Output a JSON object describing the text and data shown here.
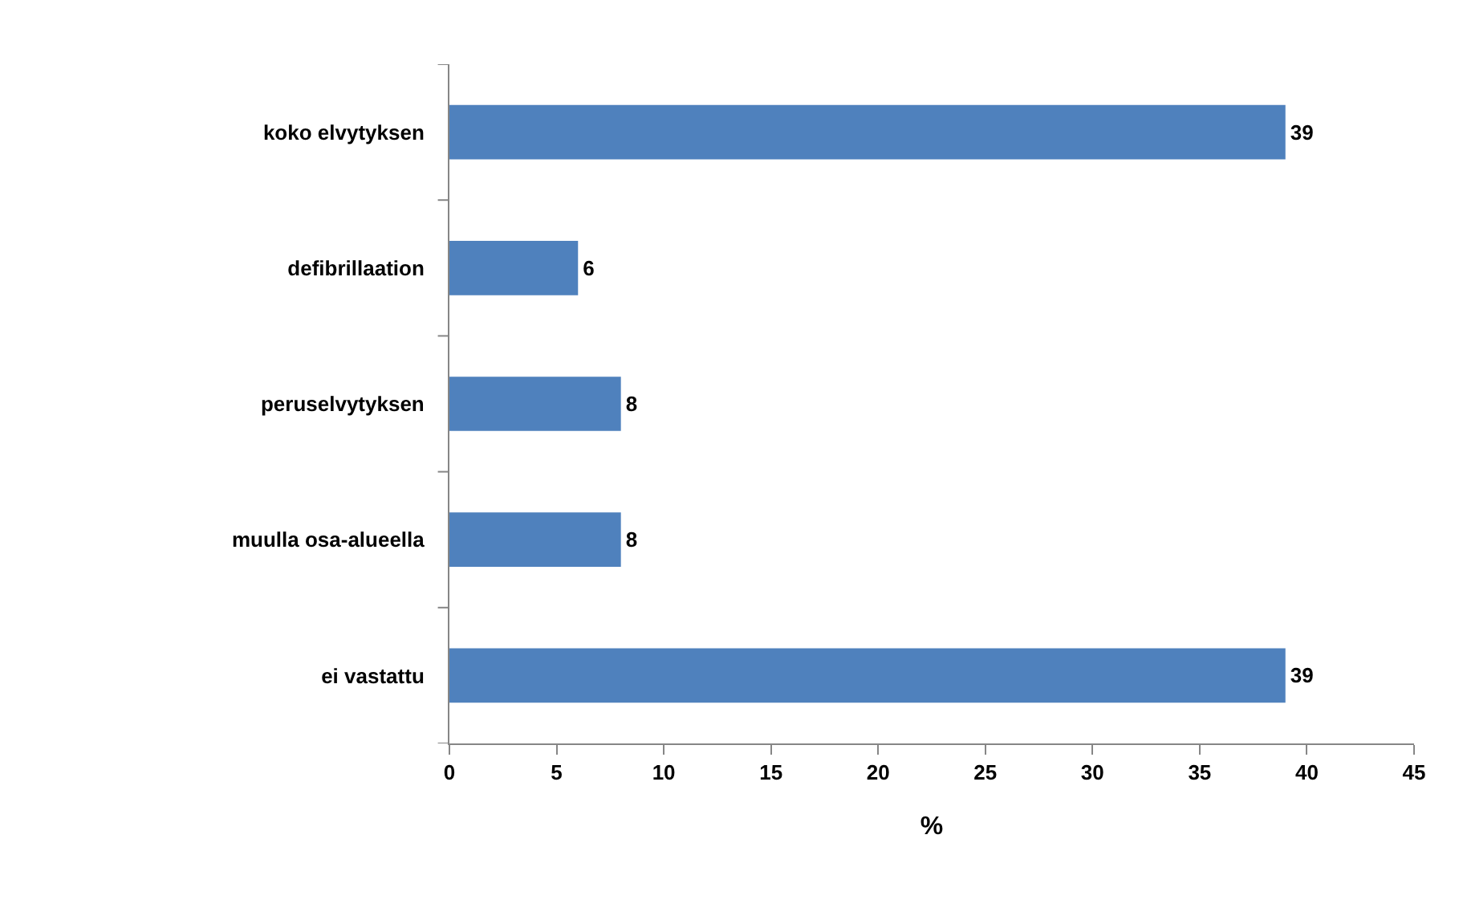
{
  "chart_data": {
    "type": "bar",
    "orientation": "horizontal",
    "xlabel": "%",
    "categories": [
      "koko elvytyksen",
      "defibrillaation",
      "peruselvytyksen",
      "muulla osa-alueella",
      "ei vastattu"
    ],
    "values": [
      39,
      6,
      8,
      8,
      39
    ],
    "color": "#4f81bd",
    "data_labels": true,
    "xlim": [
      0,
      45
    ],
    "xticks": [
      0,
      5,
      10,
      15,
      20,
      25,
      30,
      35,
      40,
      45
    ]
  }
}
